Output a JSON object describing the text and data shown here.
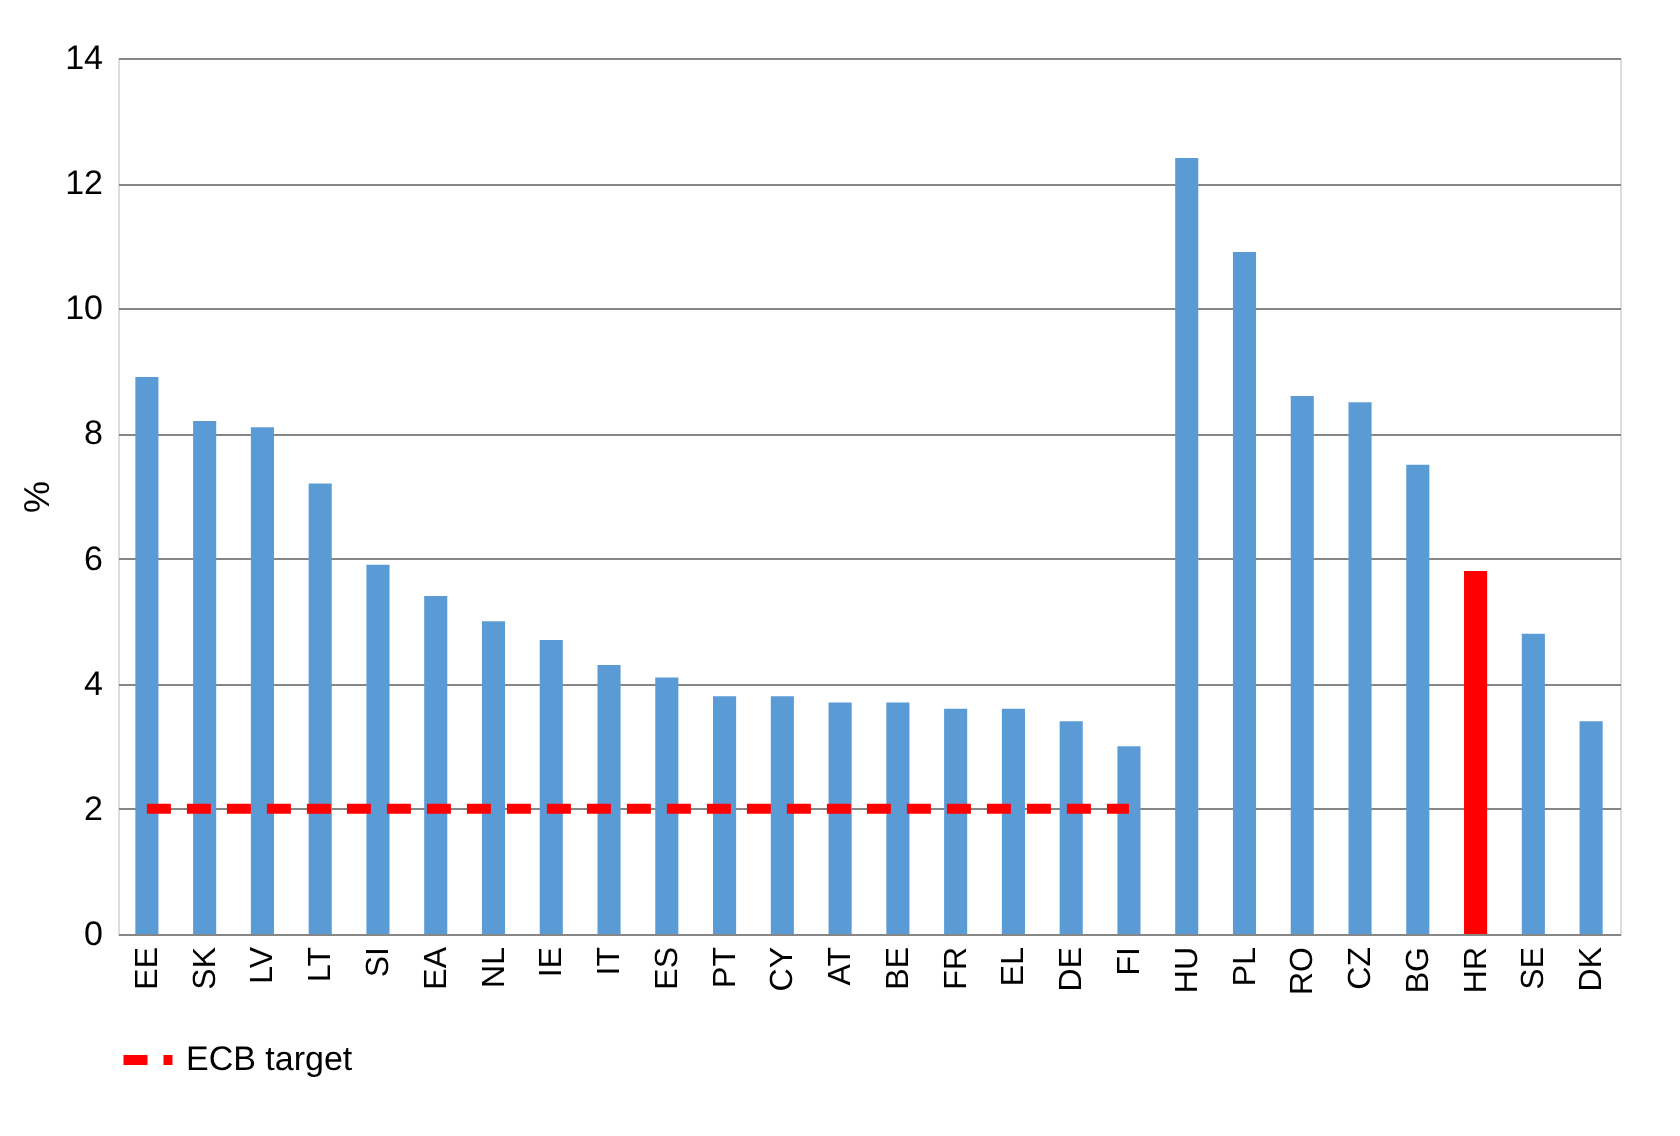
{
  "chart_data": {
    "type": "bar",
    "ylabel": "%",
    "categories": [
      "EE",
      "SK",
      "LV",
      "LT",
      "SI",
      "EA",
      "NL",
      "IE",
      "IT",
      "ES",
      "PT",
      "CY",
      "AT",
      "BE",
      "FR",
      "EL",
      "DE",
      "FI",
      null,
      "HU",
      "PL",
      "RO",
      "CZ",
      "BG",
      "HR",
      "SE",
      "DK"
    ],
    "series": [
      {
        "values": [
          8.9,
          8.2,
          8.1,
          7.2,
          5.9,
          5.4,
          5.0,
          4.7,
          4.3,
          4.1,
          3.8,
          3.8,
          3.7,
          3.7,
          3.6,
          3.6,
          3.4,
          3.0,
          null,
          12.4,
          10.9,
          8.6,
          8.5,
          7.5,
          5.8,
          4.8,
          3.4
        ],
        "colors": [
          "#5b9bd5",
          "#5b9bd5",
          "#5b9bd5",
          "#5b9bd5",
          "#5b9bd5",
          "#5b9bd5",
          "#5b9bd5",
          "#5b9bd5",
          "#5b9bd5",
          "#5b9bd5",
          "#5b9bd5",
          "#5b9bd5",
          "#5b9bd5",
          "#5b9bd5",
          "#5b9bd5",
          "#5b9bd5",
          "#5b9bd5",
          "#5b9bd5",
          "#5b9bd5",
          "#5b9bd5",
          "#5b9bd5",
          "#5b9bd5",
          "#5b9bd5",
          "#5b9bd5",
          "#ff0000",
          "#5b9bd5",
          "#5b9bd5"
        ]
      },
      {
        "type": "line",
        "name": "ECB target",
        "color": "#ff0000",
        "line_style": "dashed",
        "values": [
          2,
          2,
          2,
          2,
          2,
          2,
          2,
          2,
          2,
          2,
          2,
          2,
          2,
          2,
          2,
          2,
          2,
          2,
          null,
          null,
          null,
          null,
          null,
          null,
          null,
          null,
          null
        ]
      }
    ],
    "ylim": [
      0,
      14
    ],
    "yticks": [
      0,
      2,
      4,
      6,
      8,
      10,
      12,
      14
    ],
    "grid": "y",
    "legend": "bottom"
  }
}
